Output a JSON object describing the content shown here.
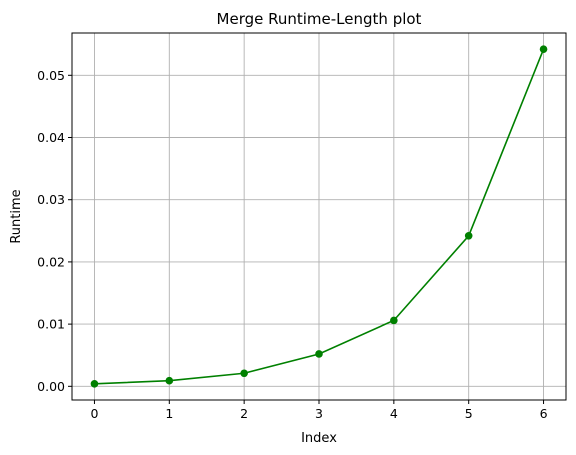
{
  "chart_data": {
    "type": "line",
    "title": "Merge Runtime-Length plot",
    "xlabel": "Index",
    "ylabel": "Runtime",
    "x": [
      0,
      1,
      2,
      3,
      4,
      5,
      6
    ],
    "series": [
      {
        "values": [
          0.0004,
          0.0009,
          0.0021,
          0.0052,
          0.0106,
          0.0242,
          0.0542
        ]
      }
    ],
    "xlim": [
      -0.3,
      6.3
    ],
    "ylim": [
      -0.0022,
      0.0568
    ],
    "xticks": [
      0,
      1,
      2,
      3,
      4,
      5,
      6
    ],
    "xtick_labels": [
      "0",
      "1",
      "2",
      "3",
      "4",
      "5",
      "6"
    ],
    "yticks": [
      0.0,
      0.01,
      0.02,
      0.03,
      0.04,
      0.05
    ],
    "ytick_labels": [
      "0.00",
      "0.01",
      "0.02",
      "0.03",
      "0.04",
      "0.05"
    ],
    "grid": true,
    "line_color": "#008000",
    "marker": "circle",
    "grid_color": "#b0b0b0"
  }
}
